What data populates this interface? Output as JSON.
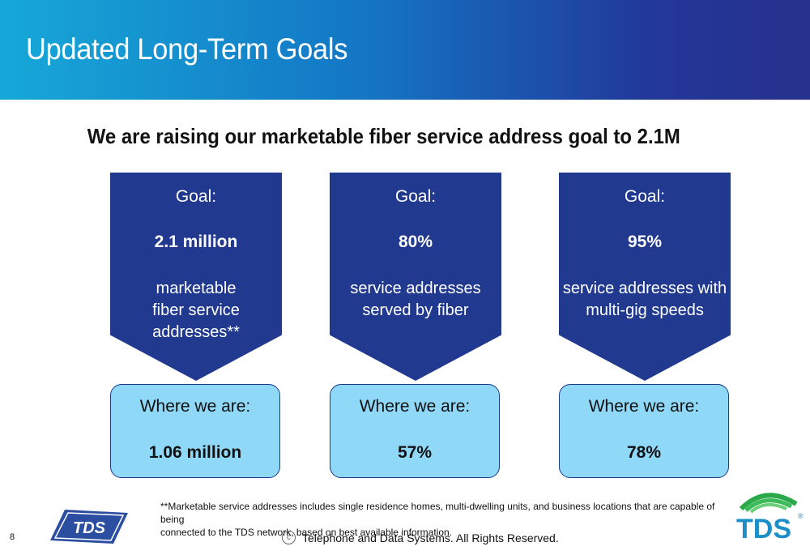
{
  "header": {
    "title": "Updated Long-Term Goals"
  },
  "headline": "We are raising our marketable fiber service address goal to 2.1M",
  "columns": [
    {
      "goal_label": "Goal:",
      "goal_value": "2.1 million",
      "goal_desc_lines": [
        "marketable",
        "fiber service",
        "addresses**"
      ],
      "where_label": "Where we are:",
      "where_value": "1.06 million"
    },
    {
      "goal_label": "Goal:",
      "goal_value": "80%",
      "goal_desc_lines": [
        "service addresses",
        "served by fiber"
      ],
      "where_label": "Where we are:",
      "where_value": "57%"
    },
    {
      "goal_label": "Goal:",
      "goal_value": "95%",
      "goal_desc_lines": [
        "service addresses with",
        "multi-gig speeds"
      ],
      "where_label": "Where we are:",
      "where_value": "78%"
    }
  ],
  "footnote": {
    "line1": "**Marketable service addresses includes single residence homes, multi-dwelling units, and business locations that are capable of being",
    "line2": "connected to the TDS network, based on best available information."
  },
  "footer": {
    "page_number": "8",
    "copyright_symbol": "c",
    "copyright_text": "Telephone and Data Systems. All Rights Reserved."
  },
  "logos": {
    "left_text": "TDS",
    "right_text": "TDS",
    "registered": "®"
  },
  "colors": {
    "goal_fill": "#213a8f",
    "where_fill": "#8fd8f7",
    "logo_green": "#2aa84a",
    "logo_blue": "#1c8fc9"
  }
}
